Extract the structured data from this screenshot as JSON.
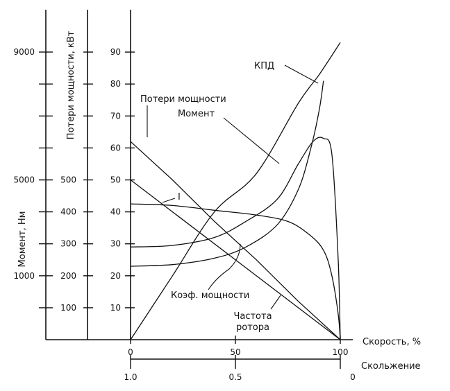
{
  "chart_data": {
    "type": "line",
    "title": "",
    "x_axis": {
      "label": "Скорость, %",
      "range": [
        0,
        100
      ],
      "ticks": [
        "0",
        "50",
        "100"
      ]
    },
    "slip_axis": {
      "label": "Скольжение",
      "range": [
        1.0,
        0
      ],
      "ticks": [
        "1.0",
        "0.5",
        "0"
      ]
    },
    "axes": {
      "main": {
        "range": [
          0,
          100
        ],
        "ticks": [
          "10",
          "20",
          "30",
          "40",
          "50",
          "60",
          "70",
          "80",
          "90"
        ]
      },
      "power_loss": {
        "label": "Потери мощности, кВт",
        "ticks": [
          "100",
          "200",
          "300",
          "400",
          "500"
        ]
      },
      "torque": {
        "label": "Момент, Нм",
        "ticks": [
          "1000",
          "5000",
          "9000"
        ]
      }
    },
    "grid": false,
    "legend": "none",
    "series": [
      {
        "name": "КПД",
        "x": [
          0,
          20,
          40,
          60,
          80,
          90,
          100
        ],
        "y": [
          0,
          20,
          40,
          52,
          74,
          83,
          93
        ]
      },
      {
        "name": "Потери мощности",
        "x": [
          0,
          20,
          40,
          60,
          80,
          100
        ],
        "y": [
          62,
          50,
          37,
          25,
          12,
          0
        ]
      },
      {
        "name": "Момент",
        "x": [
          0,
          20,
          40,
          55,
          70,
          80,
          87,
          92,
          96,
          99,
          100
        ],
        "y": [
          29,
          29.5,
          32,
          37,
          44,
          55,
          62,
          63,
          58,
          25,
          0
        ]
      },
      {
        "name": "I",
        "x": [
          0,
          20,
          40,
          60,
          75,
          85,
          92,
          96,
          99,
          100
        ],
        "y": [
          42.5,
          42,
          40.5,
          39,
          37,
          33,
          28,
          20,
          8,
          0
        ]
      },
      {
        "name": "Коэф. мощности",
        "x": [
          0,
          20,
          40,
          55,
          70,
          80,
          86,
          90,
          92
        ],
        "y": [
          23,
          23.5,
          25.5,
          29,
          36,
          47,
          60,
          72,
          81
        ]
      },
      {
        "name": "Частота ротора",
        "x": [
          0,
          100
        ],
        "y": [
          50,
          0
        ]
      }
    ],
    "annotations": [
      "КПД",
      "Потери мощности",
      "Момент",
      "I",
      "Коэф. мощности",
      "Частота\nротора"
    ]
  }
}
